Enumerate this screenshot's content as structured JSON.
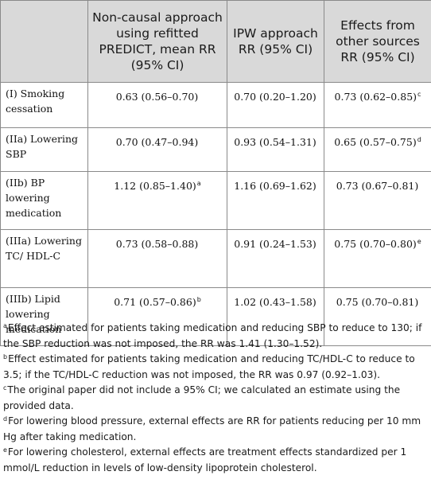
{
  "table": {
    "headers": [
      "",
      "Non-causal approach using refitted PREDICT, mean RR (95% CI)",
      "IPW approach RR (95% CI)",
      "Effects from other sources RR (95% CI)"
    ],
    "rows": [
      {
        "label": "(I) Smoking cessation",
        "values": [
          {
            "text": "0.63 (0.56–0.70)",
            "note": ""
          },
          {
            "text": "0.70 (0.20–1.20)",
            "note": ""
          },
          {
            "text": "0.73 (0.62–0.85)",
            "note": "c"
          }
        ]
      },
      {
        "label": "(IIa) Lowering SBP",
        "values": [
          {
            "text": "0.70 (0.47–0.94)",
            "note": ""
          },
          {
            "text": "0.93 (0.54–1.31)",
            "note": ""
          },
          {
            "text": "0.65 (0.57–0.75)",
            "note": "d"
          }
        ]
      },
      {
        "label": "(IIb) BP lowering medication",
        "values": [
          {
            "text": "1.12 (0.85–1.40)",
            "note": "a"
          },
          {
            "text": "1.16 (0.69–1.62)",
            "note": ""
          },
          {
            "text": "0.73 (0.67–0.81)",
            "note": ""
          }
        ]
      },
      {
        "label": "(IIIa) Lowering TC/ HDL-C",
        "values": [
          {
            "text": "0.73 (0.58–0.88)",
            "note": ""
          },
          {
            "text": "0.91 (0.24–1.53)",
            "note": ""
          },
          {
            "text": "0.75 (0.70–0.80)",
            "note": "e"
          }
        ]
      },
      {
        "label": "(IIIb) Lipid lowering medication",
        "values": [
          {
            "text": "0.71 (0.57–0.86)",
            "note": "b"
          },
          {
            "text": "1.02 (0.43–1.58)",
            "note": ""
          },
          {
            "text": "0.75 (0.70–0.81)",
            "note": ""
          }
        ]
      }
    ]
  },
  "footnotes": [
    {
      "mark": "a",
      "text": "Effect estimated for patients taking medication and reducing SBP to reduce to 130; if the SBP reduction was not imposed, the RR was 1.41 (1.30–1.52)."
    },
    {
      "mark": "b",
      "text": "Effect estimated for patients taking medication and reducing TC/HDL-C to reduce to 3.5; if the TC/HDL-C reduction was not imposed, the RR was 0.97 (0.92–1.03)."
    },
    {
      "mark": "c",
      "text": "The original paper did not include a 95% CI; we calculated an estimate using the provided data."
    },
    {
      "mark": "d",
      "text": "For lowering blood pressure, external effects are RR for patients reducing per 10 mm Hg after taking medication."
    },
    {
      "mark": "e",
      "text": "For lowering cholesterol, external effects are treatment effects standardized per 1 mmol/L reduction in levels of low-density lipoprotein cholesterol."
    }
  ]
}
